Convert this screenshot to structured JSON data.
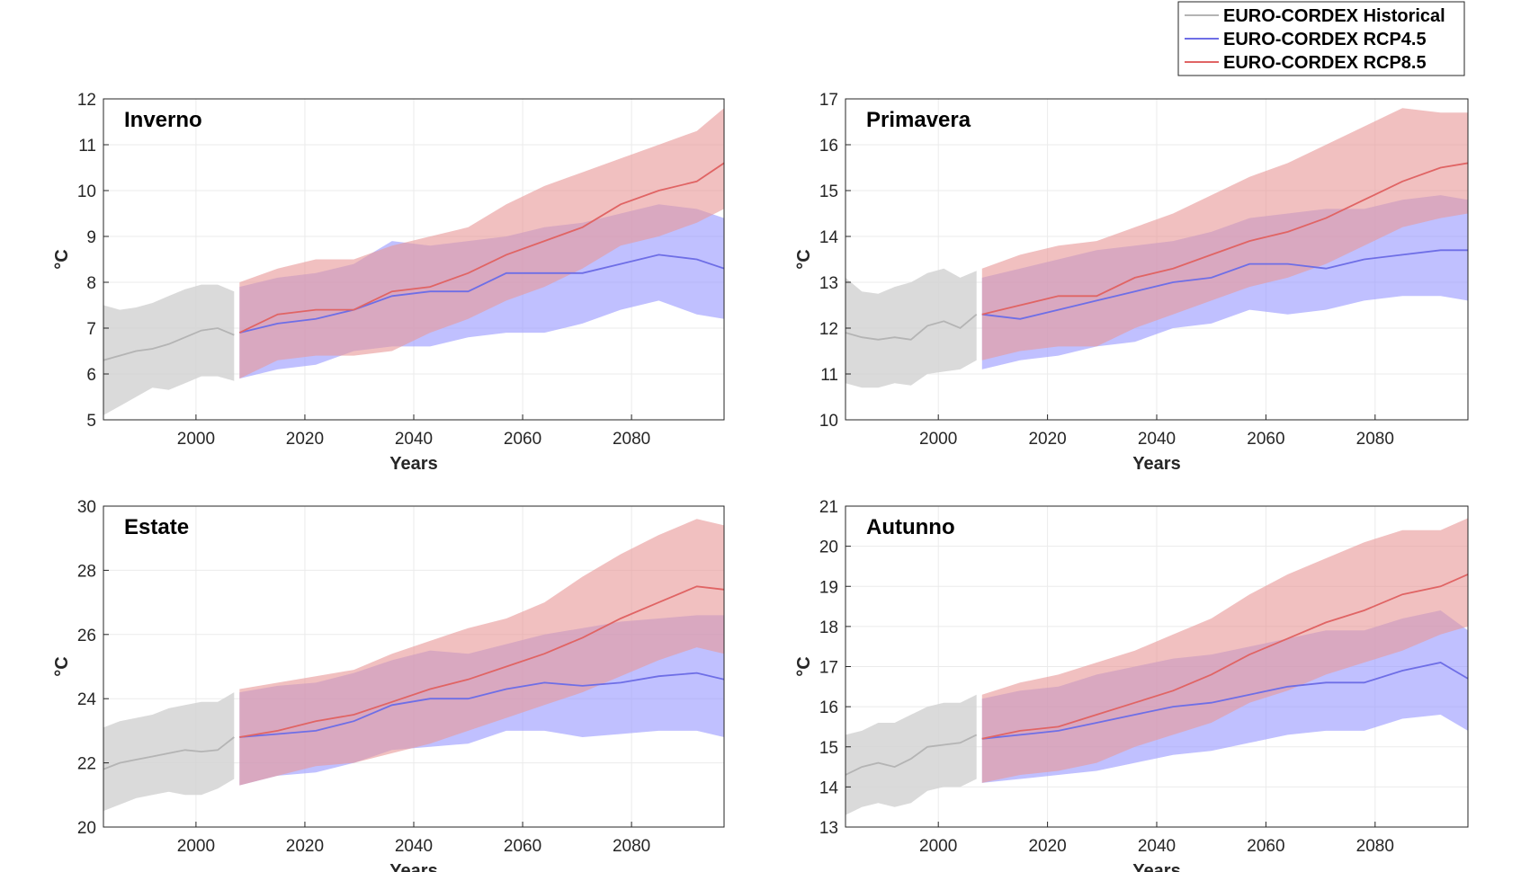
{
  "legend": {
    "placement": "top-right",
    "entries": [
      {
        "label": "EURO-CORDEX Historical",
        "color": "#b4b4b4"
      },
      {
        "label": "EURO-CORDEX RCP4.5",
        "color": "#6e6ee6"
      },
      {
        "label": "EURO-CORDEX RCP8.5",
        "color": "#e06464"
      }
    ]
  },
  "colors": {
    "historical_fill": "#d3d3d3",
    "rcp45_fill": "#9999ff",
    "rcp85_fill": "#e89999",
    "historical_line": "#b4b4b4",
    "rcp45_line": "#6e6ee6",
    "rcp85_line": "#e06464",
    "grid": "#ebebeb",
    "axes": "#262626"
  },
  "chart_data": [
    {
      "type": "area",
      "title": "Inverno",
      "xlabel": "Years",
      "ylabel": "°C",
      "xlim": [
        1983,
        2097
      ],
      "ylim": [
        5,
        12
      ],
      "xticks": [
        2000,
        2020,
        2040,
        2060,
        2080
      ],
      "yticks": [
        5,
        6,
        7,
        8,
        9,
        10,
        11,
        12
      ],
      "grid": true,
      "series": [
        {
          "key": "historical",
          "x": [
            1983,
            1986,
            1989,
            1992,
            1995,
            1998,
            2001,
            2004,
            2007
          ],
          "mean": [
            6.3,
            6.4,
            6.5,
            6.55,
            6.65,
            6.8,
            6.95,
            7.0,
            6.85
          ],
          "lower": [
            5.1,
            5.3,
            5.5,
            5.7,
            5.65,
            5.8,
            5.95,
            5.95,
            5.85
          ],
          "upper": [
            7.5,
            7.4,
            7.45,
            7.55,
            7.7,
            7.85,
            7.95,
            7.95,
            7.8
          ]
        },
        {
          "key": "rcp45",
          "x": [
            2008,
            2015,
            2022,
            2029,
            2036,
            2043,
            2050,
            2057,
            2064,
            2071,
            2078,
            2085,
            2092,
            2097
          ],
          "mean": [
            6.9,
            7.1,
            7.2,
            7.4,
            7.7,
            7.8,
            7.8,
            8.2,
            8.2,
            8.2,
            8.4,
            8.6,
            8.5,
            8.3
          ],
          "lower": [
            5.9,
            6.1,
            6.2,
            6.5,
            6.6,
            6.6,
            6.8,
            6.9,
            6.9,
            7.1,
            7.4,
            7.6,
            7.3,
            7.2
          ],
          "upper": [
            7.9,
            8.1,
            8.2,
            8.4,
            8.9,
            8.8,
            8.9,
            9.0,
            9.2,
            9.3,
            9.5,
            9.7,
            9.6,
            9.4
          ]
        },
        {
          "key": "rcp85",
          "x": [
            2008,
            2015,
            2022,
            2029,
            2036,
            2043,
            2050,
            2057,
            2064,
            2071,
            2078,
            2085,
            2092,
            2097
          ],
          "mean": [
            6.9,
            7.3,
            7.4,
            7.4,
            7.8,
            7.9,
            8.2,
            8.6,
            8.9,
            9.2,
            9.7,
            10.0,
            10.2,
            10.6
          ],
          "lower": [
            5.9,
            6.3,
            6.4,
            6.4,
            6.5,
            6.9,
            7.2,
            7.6,
            7.9,
            8.3,
            8.8,
            9.0,
            9.3,
            9.6
          ],
          "upper": [
            8.0,
            8.3,
            8.5,
            8.5,
            8.8,
            9.0,
            9.2,
            9.7,
            10.1,
            10.4,
            10.7,
            11.0,
            11.3,
            11.8
          ]
        }
      ]
    },
    {
      "type": "area",
      "title": "Primavera",
      "xlabel": "Years",
      "ylabel": "°C",
      "xlim": [
        1983,
        2097
      ],
      "ylim": [
        10,
        17
      ],
      "xticks": [
        2000,
        2020,
        2040,
        2060,
        2080
      ],
      "yticks": [
        10,
        11,
        12,
        13,
        14,
        15,
        16,
        17
      ],
      "grid": true,
      "series": [
        {
          "key": "historical",
          "x": [
            1983,
            1986,
            1989,
            1992,
            1995,
            1998,
            2001,
            2004,
            2007
          ],
          "mean": [
            11.9,
            11.8,
            11.75,
            11.8,
            11.75,
            12.05,
            12.15,
            12.0,
            12.3
          ],
          "lower": [
            10.8,
            10.7,
            10.7,
            10.8,
            10.75,
            11.0,
            11.05,
            11.1,
            11.3
          ],
          "upper": [
            13.1,
            12.8,
            12.75,
            12.9,
            13.0,
            13.2,
            13.3,
            13.1,
            13.25
          ]
        },
        {
          "key": "rcp45",
          "x": [
            2008,
            2015,
            2022,
            2029,
            2036,
            2043,
            2050,
            2057,
            2064,
            2071,
            2078,
            2085,
            2092,
            2097
          ],
          "mean": [
            12.3,
            12.2,
            12.4,
            12.6,
            12.8,
            13.0,
            13.1,
            13.4,
            13.4,
            13.3,
            13.5,
            13.6,
            13.7,
            13.7
          ],
          "lower": [
            11.1,
            11.3,
            11.4,
            11.6,
            11.7,
            12.0,
            12.1,
            12.4,
            12.3,
            12.4,
            12.6,
            12.7,
            12.7,
            12.6
          ],
          "upper": [
            13.1,
            13.3,
            13.5,
            13.7,
            13.8,
            13.9,
            14.1,
            14.4,
            14.5,
            14.6,
            14.6,
            14.8,
            14.9,
            14.8
          ]
        },
        {
          "key": "rcp85",
          "x": [
            2008,
            2015,
            2022,
            2029,
            2036,
            2043,
            2050,
            2057,
            2064,
            2071,
            2078,
            2085,
            2092,
            2097
          ],
          "mean": [
            12.3,
            12.5,
            12.7,
            12.7,
            13.1,
            13.3,
            13.6,
            13.9,
            14.1,
            14.4,
            14.8,
            15.2,
            15.5,
            15.6
          ],
          "lower": [
            11.3,
            11.5,
            11.6,
            11.6,
            12.0,
            12.3,
            12.6,
            12.9,
            13.1,
            13.4,
            13.8,
            14.2,
            14.4,
            14.5
          ],
          "upper": [
            13.3,
            13.6,
            13.8,
            13.9,
            14.2,
            14.5,
            14.9,
            15.3,
            15.6,
            16.0,
            16.4,
            16.8,
            16.7,
            16.7
          ]
        }
      ]
    },
    {
      "type": "area",
      "title": "Estate",
      "xlabel": "Years",
      "ylabel": "°C",
      "xlim": [
        1983,
        2097
      ],
      "ylim": [
        20,
        30
      ],
      "xticks": [
        2000,
        2020,
        2040,
        2060,
        2080
      ],
      "yticks": [
        20,
        22,
        24,
        26,
        28,
        30
      ],
      "grid": true,
      "series": [
        {
          "key": "historical",
          "x": [
            1983,
            1986,
            1989,
            1992,
            1995,
            1998,
            2001,
            2004,
            2007
          ],
          "mean": [
            21.8,
            22.0,
            22.1,
            22.2,
            22.3,
            22.4,
            22.35,
            22.4,
            22.8
          ],
          "lower": [
            20.5,
            20.7,
            20.9,
            21.0,
            21.1,
            21.0,
            21.0,
            21.2,
            21.5
          ],
          "upper": [
            23.1,
            23.3,
            23.4,
            23.5,
            23.7,
            23.8,
            23.9,
            23.9,
            24.2
          ]
        },
        {
          "key": "rcp45",
          "x": [
            2008,
            2015,
            2022,
            2029,
            2036,
            2043,
            2050,
            2057,
            2064,
            2071,
            2078,
            2085,
            2092,
            2097
          ],
          "mean": [
            22.8,
            22.9,
            23.0,
            23.3,
            23.8,
            24.0,
            24.0,
            24.3,
            24.5,
            24.4,
            24.5,
            24.7,
            24.8,
            24.6
          ],
          "lower": [
            21.3,
            21.6,
            21.7,
            22.0,
            22.4,
            22.5,
            22.6,
            23.0,
            23.0,
            22.8,
            22.9,
            23.0,
            23.0,
            22.8
          ],
          "upper": [
            24.2,
            24.4,
            24.5,
            24.8,
            25.2,
            25.5,
            25.4,
            25.7,
            26.0,
            26.2,
            26.4,
            26.5,
            26.6,
            26.6
          ]
        },
        {
          "key": "rcp85",
          "x": [
            2008,
            2015,
            2022,
            2029,
            2036,
            2043,
            2050,
            2057,
            2064,
            2071,
            2078,
            2085,
            2092,
            2097
          ],
          "mean": [
            22.8,
            23.0,
            23.3,
            23.5,
            23.9,
            24.3,
            24.6,
            25.0,
            25.4,
            25.9,
            26.5,
            27.0,
            27.5,
            27.4
          ],
          "lower": [
            21.3,
            21.6,
            21.9,
            22.0,
            22.3,
            22.6,
            23.0,
            23.4,
            23.8,
            24.2,
            24.7,
            25.2,
            25.6,
            25.4
          ],
          "upper": [
            24.3,
            24.5,
            24.7,
            24.9,
            25.4,
            25.8,
            26.2,
            26.5,
            27.0,
            27.8,
            28.5,
            29.1,
            29.6,
            29.4
          ]
        }
      ]
    },
    {
      "type": "area",
      "title": "Autunno",
      "xlabel": "Years",
      "ylabel": "°C",
      "xlim": [
        1983,
        2097
      ],
      "ylim": [
        13,
        21
      ],
      "xticks": [
        2000,
        2020,
        2040,
        2060,
        2080
      ],
      "yticks": [
        13,
        14,
        15,
        16,
        17,
        18,
        19,
        20,
        21
      ],
      "grid": true,
      "series": [
        {
          "key": "historical",
          "x": [
            1983,
            1986,
            1989,
            1992,
            1995,
            1998,
            2001,
            2004,
            2007
          ],
          "mean": [
            14.3,
            14.5,
            14.6,
            14.5,
            14.7,
            15.0,
            15.05,
            15.1,
            15.3
          ],
          "lower": [
            13.3,
            13.5,
            13.6,
            13.5,
            13.6,
            13.9,
            14.0,
            14.0,
            14.2
          ],
          "upper": [
            15.3,
            15.4,
            15.6,
            15.6,
            15.8,
            16.0,
            16.1,
            16.1,
            16.3
          ]
        },
        {
          "key": "rcp45",
          "x": [
            2008,
            2015,
            2022,
            2029,
            2036,
            2043,
            2050,
            2057,
            2064,
            2071,
            2078,
            2085,
            2092,
            2097
          ],
          "mean": [
            15.2,
            15.3,
            15.4,
            15.6,
            15.8,
            16.0,
            16.1,
            16.3,
            16.5,
            16.6,
            16.6,
            16.9,
            17.1,
            16.7
          ],
          "lower": [
            14.1,
            14.2,
            14.3,
            14.4,
            14.6,
            14.8,
            14.9,
            15.1,
            15.3,
            15.4,
            15.4,
            15.7,
            15.8,
            15.4
          ],
          "upper": [
            16.2,
            16.4,
            16.5,
            16.8,
            17.0,
            17.2,
            17.3,
            17.5,
            17.7,
            17.9,
            17.9,
            18.2,
            18.4,
            17.9
          ]
        },
        {
          "key": "rcp85",
          "x": [
            2008,
            2015,
            2022,
            2029,
            2036,
            2043,
            2050,
            2057,
            2064,
            2071,
            2078,
            2085,
            2092,
            2097
          ],
          "mean": [
            15.2,
            15.4,
            15.5,
            15.8,
            16.1,
            16.4,
            16.8,
            17.3,
            17.7,
            18.1,
            18.4,
            18.8,
            19.0,
            19.3
          ],
          "lower": [
            14.1,
            14.3,
            14.4,
            14.6,
            15.0,
            15.3,
            15.6,
            16.1,
            16.4,
            16.8,
            17.1,
            17.4,
            17.8,
            18.0
          ],
          "upper": [
            16.3,
            16.6,
            16.8,
            17.1,
            17.4,
            17.8,
            18.2,
            18.8,
            19.3,
            19.7,
            20.1,
            20.4,
            20.4,
            20.7
          ]
        }
      ]
    }
  ]
}
